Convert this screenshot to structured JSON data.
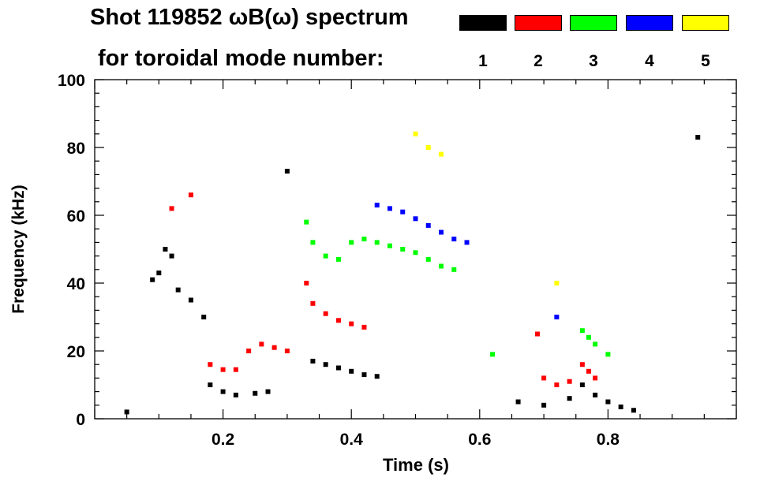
{
  "header": {
    "title_line1": "Shot 119852 ωB(ω) spectrum",
    "title_line2": "for toroidal mode number:"
  },
  "legend": [
    {
      "label": "1",
      "color": "#000000"
    },
    {
      "label": "2",
      "color": "#ff0000"
    },
    {
      "label": "3",
      "color": "#00ff00"
    },
    {
      "label": "4",
      "color": "#0000ff"
    },
    {
      "label": "5",
      "color": "#ffff00"
    }
  ],
  "chart_data": {
    "type": "scatter",
    "title": "Shot 119852 ωB(ω) spectrum",
    "xlabel": "Time (s)",
    "ylabel": "Frequency (kHz)",
    "xlim": [
      0.0,
      1.0
    ],
    "ylim": [
      0,
      100
    ],
    "xticks": [
      0.2,
      0.4,
      0.6,
      0.8
    ],
    "xtick_labels": [
      "0.2",
      "0.4",
      "0.6",
      "0.8"
    ],
    "yticks": [
      0,
      20,
      40,
      60,
      80,
      100
    ],
    "ytick_labels": [
      "0",
      "20",
      "40",
      "60",
      "80",
      "100"
    ],
    "legend_title": "for toroidal mode number:",
    "series": [
      {
        "name": "1",
        "color": "#000000",
        "points": [
          [
            0.05,
            2
          ],
          [
            0.09,
            41
          ],
          [
            0.1,
            43
          ],
          [
            0.11,
            50
          ],
          [
            0.12,
            48
          ],
          [
            0.13,
            38
          ],
          [
            0.15,
            35
          ],
          [
            0.17,
            30
          ],
          [
            0.18,
            10
          ],
          [
            0.2,
            8
          ],
          [
            0.22,
            7
          ],
          [
            0.25,
            7.5
          ],
          [
            0.27,
            8
          ],
          [
            0.3,
            73
          ],
          [
            0.34,
            17
          ],
          [
            0.36,
            16
          ],
          [
            0.38,
            15
          ],
          [
            0.4,
            14
          ],
          [
            0.42,
            13
          ],
          [
            0.44,
            12.5
          ],
          [
            0.66,
            5
          ],
          [
            0.7,
            4
          ],
          [
            0.74,
            6
          ],
          [
            0.76,
            10
          ],
          [
            0.78,
            7
          ],
          [
            0.8,
            5
          ],
          [
            0.82,
            3.5
          ],
          [
            0.84,
            2.5
          ],
          [
            0.94,
            83
          ]
        ]
      },
      {
        "name": "2",
        "color": "#ff0000",
        "points": [
          [
            0.12,
            62
          ],
          [
            0.15,
            66
          ],
          [
            0.18,
            16
          ],
          [
            0.2,
            14.5
          ],
          [
            0.22,
            14.5
          ],
          [
            0.24,
            20
          ],
          [
            0.26,
            22
          ],
          [
            0.28,
            21
          ],
          [
            0.3,
            20
          ],
          [
            0.33,
            40
          ],
          [
            0.34,
            34
          ],
          [
            0.36,
            31
          ],
          [
            0.38,
            29
          ],
          [
            0.4,
            28
          ],
          [
            0.42,
            27
          ],
          [
            0.69,
            25
          ],
          [
            0.7,
            12
          ],
          [
            0.72,
            10
          ],
          [
            0.74,
            11
          ],
          [
            0.76,
            16
          ],
          [
            0.77,
            14
          ],
          [
            0.78,
            12
          ]
        ]
      },
      {
        "name": "3",
        "color": "#00ff00",
        "points": [
          [
            0.33,
            58
          ],
          [
            0.34,
            52
          ],
          [
            0.36,
            48
          ],
          [
            0.38,
            47
          ],
          [
            0.4,
            52
          ],
          [
            0.42,
            53
          ],
          [
            0.44,
            52
          ],
          [
            0.46,
            51
          ],
          [
            0.48,
            50
          ],
          [
            0.5,
            49
          ],
          [
            0.52,
            47
          ],
          [
            0.54,
            45
          ],
          [
            0.56,
            44
          ],
          [
            0.62,
            19
          ],
          [
            0.76,
            26
          ],
          [
            0.77,
            24
          ],
          [
            0.78,
            22
          ],
          [
            0.8,
            19
          ]
        ]
      },
      {
        "name": "4",
        "color": "#0000ff",
        "points": [
          [
            0.44,
            63
          ],
          [
            0.46,
            62
          ],
          [
            0.48,
            61
          ],
          [
            0.5,
            59
          ],
          [
            0.52,
            57
          ],
          [
            0.54,
            55
          ],
          [
            0.56,
            53
          ],
          [
            0.58,
            52
          ],
          [
            0.72,
            30
          ]
        ]
      },
      {
        "name": "5",
        "color": "#ffff00",
        "points": [
          [
            0.5,
            84
          ],
          [
            0.52,
            80
          ],
          [
            0.54,
            78
          ],
          [
            0.72,
            40
          ]
        ]
      }
    ]
  }
}
